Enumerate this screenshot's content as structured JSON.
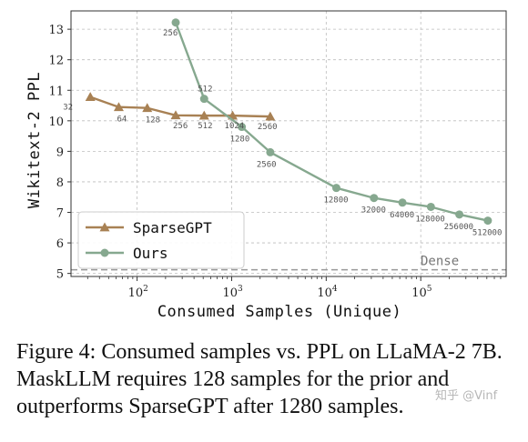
{
  "chart_data": {
    "type": "line",
    "xscale": "log",
    "xlabel": "Consumed Samples (Unique)",
    "ylabel": "Wikitext-2 PPL",
    "xlim": [
      20,
      800000
    ],
    "ylim": [
      4.9,
      13.6
    ],
    "x_ticks": [
      {
        "value": 100,
        "base": "10",
        "exp": "2"
      },
      {
        "value": 1000,
        "base": "10",
        "exp": "3"
      },
      {
        "value": 10000,
        "base": "10",
        "exp": "4"
      },
      {
        "value": 100000,
        "base": "10",
        "exp": "5"
      }
    ],
    "y_ticks": [
      5,
      6,
      7,
      8,
      9,
      10,
      11,
      12,
      13
    ],
    "grid": true,
    "legend_position": "bottom-left",
    "series": [
      {
        "name": "SparseGPT",
        "color": "#a88154",
        "marker": "triangle",
        "points": [
          {
            "x": 32,
            "y": 10.78,
            "label": "32"
          },
          {
            "x": 64,
            "y": 10.45,
            "label": "64"
          },
          {
            "x": 128,
            "y": 10.42,
            "label": "128"
          },
          {
            "x": 256,
            "y": 10.18,
            "label": "256"
          },
          {
            "x": 512,
            "y": 10.17,
            "label": "512"
          },
          {
            "x": 1024,
            "y": 10.17,
            "label": "1024"
          },
          {
            "x": 2560,
            "y": 10.14,
            "label": "2560"
          }
        ]
      },
      {
        "name": "Ours",
        "color": "#86a88f",
        "marker": "circle",
        "points": [
          {
            "x": 256,
            "y": 13.22,
            "label": "256"
          },
          {
            "x": 512,
            "y": 10.72,
            "label": "512"
          },
          {
            "x": 1280,
            "y": 9.8,
            "label": "1280"
          },
          {
            "x": 2560,
            "y": 8.97,
            "label": "2560"
          },
          {
            "x": 12800,
            "y": 7.8,
            "label": "12800"
          },
          {
            "x": 32000,
            "y": 7.47,
            "label": "32000"
          },
          {
            "x": 64000,
            "y": 7.32,
            "label": "64000"
          },
          {
            "x": 128000,
            "y": 7.18,
            "label": "128000"
          },
          {
            "x": 256000,
            "y": 6.93,
            "label": "256000"
          },
          {
            "x": 512000,
            "y": 6.73,
            "label": "512000"
          }
        ]
      }
    ],
    "reference_line": {
      "label": "Dense",
      "y": 5.12,
      "color": "#999999",
      "style": "dashed"
    }
  },
  "caption": "Figure 4: Consumed samples vs. PPL on LLaMA-2 7B. MaskLLM requires 128 samples for the prior and outperforms SparseGPT after 1280 samples.",
  "watermark": "知乎 @Vinf"
}
